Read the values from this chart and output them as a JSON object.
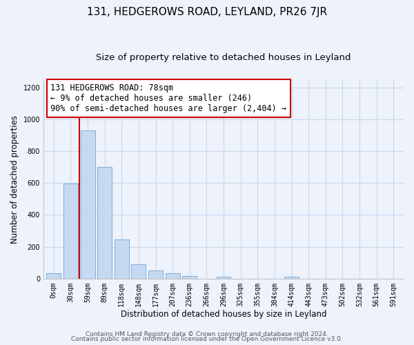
{
  "title": "131, HEDGEROWS ROAD, LEYLAND, PR26 7JR",
  "subtitle": "Size of property relative to detached houses in Leyland",
  "xlabel": "Distribution of detached houses by size in Leyland",
  "ylabel": "Number of detached properties",
  "bin_labels": [
    "0sqm",
    "30sqm",
    "59sqm",
    "89sqm",
    "118sqm",
    "148sqm",
    "177sqm",
    "207sqm",
    "236sqm",
    "266sqm",
    "296sqm",
    "325sqm",
    "355sqm",
    "384sqm",
    "414sqm",
    "443sqm",
    "473sqm",
    "502sqm",
    "532sqm",
    "561sqm",
    "591sqm"
  ],
  "bar_heights": [
    35,
    595,
    930,
    700,
    248,
    92,
    52,
    32,
    18,
    0,
    12,
    0,
    0,
    0,
    12,
    0,
    0,
    0,
    0,
    0,
    0
  ],
  "bar_color": "#c5d9f0",
  "bar_edge_color": "#7aadda",
  "vline_x": 1.5,
  "vline_color": "#cc0000",
  "annotation_line1": "131 HEDGEROWS ROAD: 78sqm",
  "annotation_line2": "← 9% of detached houses are smaller (246)",
  "annotation_line3": "90% of semi-detached houses are larger (2,404) →",
  "annotation_box_color": "#ffffff",
  "annotation_box_edge_color": "#cc0000",
  "ylim": [
    0,
    1250
  ],
  "yticks": [
    0,
    200,
    400,
    600,
    800,
    1000,
    1200
  ],
  "footer_line1": "Contains HM Land Registry data © Crown copyright and database right 2024.",
  "footer_line2": "Contains public sector information licensed under the Open Government Licence v3.0.",
  "background_color": "#edf2fb",
  "grid_color": "#c8d8ee",
  "title_fontsize": 11,
  "subtitle_fontsize": 9.5,
  "axis_label_fontsize": 8.5,
  "tick_fontsize": 7,
  "annotation_fontsize": 8.5,
  "footer_fontsize": 6.5
}
